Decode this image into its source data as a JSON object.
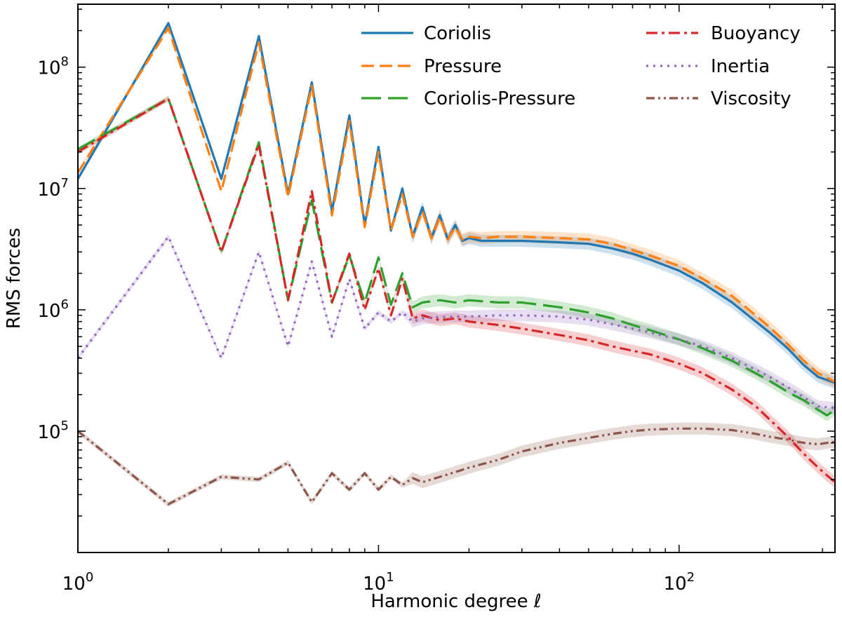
{
  "chart_data": {
    "type": "line",
    "xscale": "log",
    "yscale": "log",
    "xlim": [
      1,
      330
    ],
    "ylim": [
      10000,
      330000000
    ],
    "xlabel": "Harmonic degree ℓ",
    "ylabel": "RMS forces",
    "x_major_ticks": [
      1,
      10,
      100
    ],
    "x_tick_labels": [
      {
        "base": "10",
        "exp": "0"
      },
      {
        "base": "10",
        "exp": "1"
      },
      {
        "base": "10",
        "exp": "2"
      }
    ],
    "y_major_ticks": [
      100000,
      1000000,
      10000000,
      100000000
    ],
    "y_tick_labels": [
      {
        "base": "10",
        "exp": "5"
      },
      {
        "base": "10",
        "exp": "6"
      },
      {
        "base": "10",
        "exp": "7"
      },
      {
        "base": "10",
        "exp": "8"
      }
    ],
    "legend_position": "top-right",
    "series": [
      {
        "name": "Coriolis",
        "color": "#1f77b4",
        "dash": "solid",
        "band": true,
        "points": [
          [
            1,
            12000000.0
          ],
          [
            2,
            230000000.0
          ],
          [
            3,
            12000000.0
          ],
          [
            4,
            180000000.0
          ],
          [
            5,
            9000000.0
          ],
          [
            6,
            75000000.0
          ],
          [
            7,
            6500000.0
          ],
          [
            8,
            40000000.0
          ],
          [
            9,
            5000000.0
          ],
          [
            10,
            22000000.0
          ],
          [
            11,
            4500000.0
          ],
          [
            12,
            10000000.0
          ],
          [
            13,
            4000000.0
          ],
          [
            14,
            7000000.0
          ],
          [
            15,
            3900000.0
          ],
          [
            16,
            6000000.0
          ],
          [
            17,
            3800000.0
          ],
          [
            18,
            5000000.0
          ],
          [
            19,
            3700000.0
          ],
          [
            20,
            3900000.0
          ],
          [
            22,
            3700000.0
          ],
          [
            25,
            3700000.0
          ],
          [
            30,
            3700000.0
          ],
          [
            40,
            3600000.0
          ],
          [
            50,
            3500000.0
          ],
          [
            60,
            3200000.0
          ],
          [
            70,
            2900000.0
          ],
          [
            80,
            2600000.0
          ],
          [
            100,
            2100000.0
          ],
          [
            120,
            1650000.0
          ],
          [
            150,
            1150000.0
          ],
          [
            180,
            800000.0
          ],
          [
            200,
            650000.0
          ],
          [
            230,
            480000.0
          ],
          [
            260,
            350000.0
          ],
          [
            290,
            280000.0
          ],
          [
            330,
            250000.0
          ]
        ]
      },
      {
        "name": "Pressure",
        "color": "#ff7f0e",
        "dash": "dashed",
        "band": true,
        "points": [
          [
            1,
            13500000.0
          ],
          [
            2,
            210000000.0
          ],
          [
            3,
            9500000.0
          ],
          [
            4,
            160000000.0
          ],
          [
            5,
            8500000.0
          ],
          [
            6,
            70000000.0
          ],
          [
            7,
            6000000.0
          ],
          [
            8,
            36000000.0
          ],
          [
            9,
            4800000.0
          ],
          [
            10,
            20000000.0
          ],
          [
            11,
            4500000.0
          ],
          [
            12,
            9000000.0
          ],
          [
            13,
            4000000.0
          ],
          [
            14,
            6500000.0
          ],
          [
            15,
            3900000.0
          ],
          [
            16,
            5800000.0
          ],
          [
            17,
            3800000.0
          ],
          [
            18,
            4800000.0
          ],
          [
            19,
            3800000.0
          ],
          [
            20,
            4000000.0
          ],
          [
            22,
            3900000.0
          ],
          [
            25,
            4000000.0
          ],
          [
            30,
            4000000.0
          ],
          [
            40,
            3900000.0
          ],
          [
            50,
            3800000.0
          ],
          [
            60,
            3500000.0
          ],
          [
            70,
            3100000.0
          ],
          [
            80,
            2800000.0
          ],
          [
            100,
            2300000.0
          ],
          [
            120,
            1800000.0
          ],
          [
            150,
            1300000.0
          ],
          [
            180,
            900000.0
          ],
          [
            200,
            720000.0
          ],
          [
            230,
            520000.0
          ],
          [
            260,
            380000.0
          ],
          [
            290,
            300000.0
          ],
          [
            330,
            255000.0
          ]
        ]
      },
      {
        "name": "Coriolis-Pressure",
        "color": "#2ca02c",
        "dash": "longdash",
        "band": true,
        "points": [
          [
            1,
            21000000.0
          ],
          [
            2,
            55000000.0
          ],
          [
            3,
            3000000.0
          ],
          [
            4,
            24000000.0
          ],
          [
            5,
            1200000.0
          ],
          [
            6,
            8000000.0
          ],
          [
            7,
            1150000.0
          ],
          [
            8,
            2800000.0
          ],
          [
            9,
            1150000.0
          ],
          [
            10,
            2700000.0
          ],
          [
            11,
            1100000.0
          ],
          [
            12,
            2000000.0
          ],
          [
            13,
            1050000.0
          ],
          [
            14,
            1150000.0
          ],
          [
            16,
            1200000.0
          ],
          [
            18,
            1150000.0
          ],
          [
            20,
            1200000.0
          ],
          [
            25,
            1150000.0
          ],
          [
            30,
            1150000.0
          ],
          [
            40,
            1050000.0
          ],
          [
            50,
            950000.0
          ],
          [
            60,
            850000.0
          ],
          [
            70,
            750000.0
          ],
          [
            80,
            680000.0
          ],
          [
            100,
            570000.0
          ],
          [
            120,
            480000.0
          ],
          [
            150,
            380000.0
          ],
          [
            180,
            300000.0
          ],
          [
            200,
            260000.0
          ],
          [
            230,
            210000.0
          ],
          [
            260,
            180000.0
          ],
          [
            290,
            150000.0
          ],
          [
            310,
            135000.0
          ],
          [
            330,
            150000.0
          ]
        ]
      },
      {
        "name": "Buoyancy",
        "color": "#d62728",
        "dash": "dashdot",
        "band": true,
        "points": [
          [
            1,
            20000000.0
          ],
          [
            2,
            55000000.0
          ],
          [
            3,
            3000000.0
          ],
          [
            4,
            23000000.0
          ],
          [
            5,
            1200000.0
          ],
          [
            6,
            9500000.0
          ],
          [
            7,
            1150000.0
          ],
          [
            8,
            2900000.0
          ],
          [
            9,
            1000000.0
          ],
          [
            10,
            2200000.0
          ],
          [
            11,
            900000.0
          ],
          [
            12,
            1800000.0
          ],
          [
            13,
            850000.0
          ],
          [
            14,
            900000.0
          ],
          [
            16,
            820000.0
          ],
          [
            18,
            850000.0
          ],
          [
            20,
            800000.0
          ],
          [
            25,
            750000.0
          ],
          [
            30,
            700000.0
          ],
          [
            40,
            620000.0
          ],
          [
            50,
            560000.0
          ],
          [
            60,
            500000.0
          ],
          [
            70,
            460000.0
          ],
          [
            80,
            430000.0
          ],
          [
            100,
            360000.0
          ],
          [
            120,
            300000.0
          ],
          [
            150,
            220000.0
          ],
          [
            180,
            160000.0
          ],
          [
            200,
            125000.0
          ],
          [
            230,
            90000.0
          ],
          [
            260,
            65000.0
          ],
          [
            290,
            50000.0
          ],
          [
            330,
            38000.0
          ]
        ]
      },
      {
        "name": "Inertia",
        "color": "#9467bd",
        "dash": "dotted",
        "band": true,
        "points": [
          [
            1,
            400000.0
          ],
          [
            2,
            4000000.0
          ],
          [
            3,
            400000.0
          ],
          [
            4,
            3000000.0
          ],
          [
            5,
            500000.0
          ],
          [
            6,
            2500000.0
          ],
          [
            7,
            600000.0
          ],
          [
            8,
            1800000.0
          ],
          [
            9,
            700000.0
          ],
          [
            10,
            950000.0
          ],
          [
            11,
            800000.0
          ],
          [
            12,
            950000.0
          ],
          [
            13,
            800000.0
          ],
          [
            14,
            850000.0
          ],
          [
            16,
            870000.0
          ],
          [
            18,
            880000.0
          ],
          [
            20,
            880000.0
          ],
          [
            25,
            900000.0
          ],
          [
            30,
            900000.0
          ],
          [
            40,
            880000.0
          ],
          [
            50,
            830000.0
          ],
          [
            60,
            760000.0
          ],
          [
            70,
            700000.0
          ],
          [
            80,
            650000.0
          ],
          [
            100,
            570000.0
          ],
          [
            120,
            500000.0
          ],
          [
            150,
            400000.0
          ],
          [
            180,
            320000.0
          ],
          [
            200,
            280000.0
          ],
          [
            230,
            230000.0
          ],
          [
            260,
            190000.0
          ],
          [
            290,
            160000.0
          ],
          [
            330,
            155000.0
          ]
        ]
      },
      {
        "name": "Viscosity",
        "color": "#8c564b",
        "dash": "dashdotdot",
        "band": true,
        "points": [
          [
            1,
            100000.0
          ],
          [
            2,
            25000.0
          ],
          [
            3,
            42000.0
          ],
          [
            4,
            40000.0
          ],
          [
            5,
            55000.0
          ],
          [
            6,
            26000.0
          ],
          [
            7,
            45000.0
          ],
          [
            8,
            33000.0
          ],
          [
            9,
            45000.0
          ],
          [
            10,
            33000.0
          ],
          [
            11,
            42000.0
          ],
          [
            12,
            36000.0
          ],
          [
            13,
            41000.0
          ],
          [
            14,
            38000.0
          ],
          [
            16,
            42000.0
          ],
          [
            18,
            46000.0
          ],
          [
            20,
            50000.0
          ],
          [
            25,
            58000.0
          ],
          [
            30,
            68000.0
          ],
          [
            40,
            80000.0
          ],
          [
            50,
            88000.0
          ],
          [
            60,
            95000.0
          ],
          [
            70,
            100000.0
          ],
          [
            80,
            103000.0
          ],
          [
            100,
            105000.0
          ],
          [
            120,
            105000.0
          ],
          [
            150,
            102000.0
          ],
          [
            180,
            95000.0
          ],
          [
            200,
            90000.0
          ],
          [
            230,
            85000.0
          ],
          [
            260,
            80000.0
          ],
          [
            290,
            78000.0
          ],
          [
            330,
            82000.0
          ]
        ]
      }
    ]
  }
}
